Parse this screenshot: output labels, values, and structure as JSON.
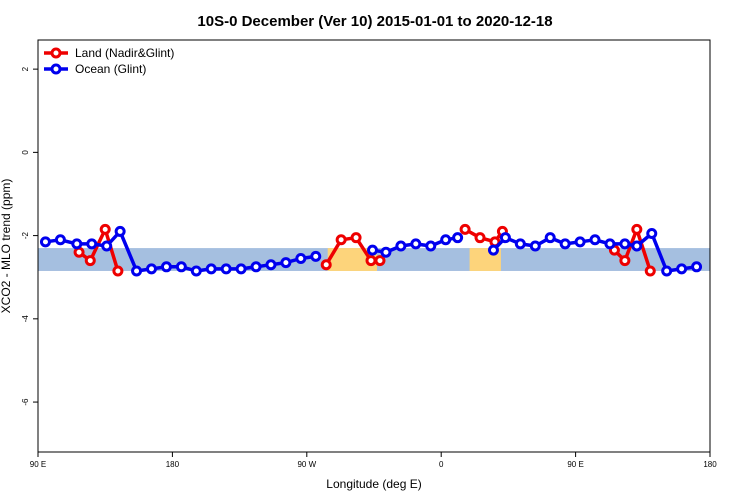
{
  "chart_data": {
    "type": "line",
    "title": "10S-0 December (Ver 10)   2015-01-01 to 2020-12-18",
    "xlabel": "Longitude (deg E)",
    "ylabel": "XCO2 - MLO trend (ppm)",
    "xlim": [
      90,
      540
    ],
    "ylim": [
      -7.2,
      2.7
    ],
    "x_ticks": [
      {
        "value": 90,
        "label": "90 E"
      },
      {
        "value": 180,
        "label": "180"
      },
      {
        "value": 270,
        "label": "90 W"
      },
      {
        "value": 360,
        "label": "0"
      },
      {
        "value": 450,
        "label": "90 E"
      },
      {
        "value": 540,
        "label": "180"
      }
    ],
    "y_ticks": [
      {
        "value": 2,
        "label": "2"
      },
      {
        "value": 0,
        "label": "0"
      },
      {
        "value": -2,
        "label": "-2"
      },
      {
        "value": -4,
        "label": "-4"
      },
      {
        "value": -6,
        "label": "-6"
      }
    ],
    "grid": false,
    "legend_position": "top-left",
    "series": [
      {
        "name": "Land (Nadir&Glint)",
        "color": "#ee0000",
        "segments": [
          [
            [
              117.5,
              -2.4
            ],
            [
              125,
              -2.6
            ],
            [
              135,
              -1.85
            ],
            [
              143.5,
              -2.85
            ]
          ],
          [
            [
              283,
              -2.7
            ],
            [
              293,
              -2.1
            ],
            [
              303,
              -2.05
            ],
            [
              313,
              -2.6
            ],
            [
              319,
              -2.6
            ]
          ],
          [
            [
              376,
              -1.85
            ],
            [
              386,
              -2.05
            ],
            [
              396,
              -2.15
            ],
            [
              401,
              -1.9
            ]
          ],
          [
            [
              476,
              -2.35
            ],
            [
              483,
              -2.6
            ],
            [
              491,
              -1.85
            ],
            [
              500,
              -2.85
            ]
          ]
        ]
      },
      {
        "name": "Ocean (Glint)",
        "color": "#0000ee",
        "segments": [
          [
            [
              95,
              -2.15
            ],
            [
              105,
              -2.1
            ],
            [
              116,
              -2.2
            ],
            [
              126,
              -2.2
            ],
            [
              136,
              -2.25
            ],
            [
              145,
              -1.9
            ],
            [
              156,
              -2.85
            ],
            [
              166,
              -2.8
            ],
            [
              176,
              -2.75
            ],
            [
              186,
              -2.75
            ],
            [
              196,
              -2.85
            ],
            [
              206,
              -2.8
            ],
            [
              216,
              -2.8
            ],
            [
              226,
              -2.8
            ],
            [
              236,
              -2.75
            ],
            [
              246,
              -2.7
            ],
            [
              256,
              -2.65
            ],
            [
              266,
              -2.55
            ],
            [
              276,
              -2.5
            ]
          ],
          [
            [
              314,
              -2.35
            ],
            [
              323,
              -2.4
            ],
            [
              333,
              -2.25
            ],
            [
              343,
              -2.2
            ],
            [
              353,
              -2.25
            ],
            [
              363,
              -2.1
            ],
            [
              371,
              -2.05
            ]
          ],
          [
            [
              395,
              -2.35
            ],
            [
              403,
              -2.05
            ],
            [
              413,
              -2.2
            ],
            [
              423,
              -2.25
            ],
            [
              433,
              -2.05
            ],
            [
              443,
              -2.2
            ],
            [
              453,
              -2.15
            ],
            [
              463,
              -2.1
            ],
            [
              473,
              -2.2
            ],
            [
              483,
              -2.2
            ],
            [
              491,
              -2.25
            ],
            [
              501,
              -1.95
            ],
            [
              511,
              -2.85
            ],
            [
              521,
              -2.8
            ],
            [
              531,
              -2.75
            ]
          ]
        ]
      }
    ],
    "background_band": {
      "ymin": -2.85,
      "ymax": -2.3,
      "ocean_color": "#a5bfe0",
      "land_color": "#fdd47b",
      "land_ranges": [
        [
          284,
          317
        ],
        [
          379,
          400
        ]
      ]
    }
  }
}
